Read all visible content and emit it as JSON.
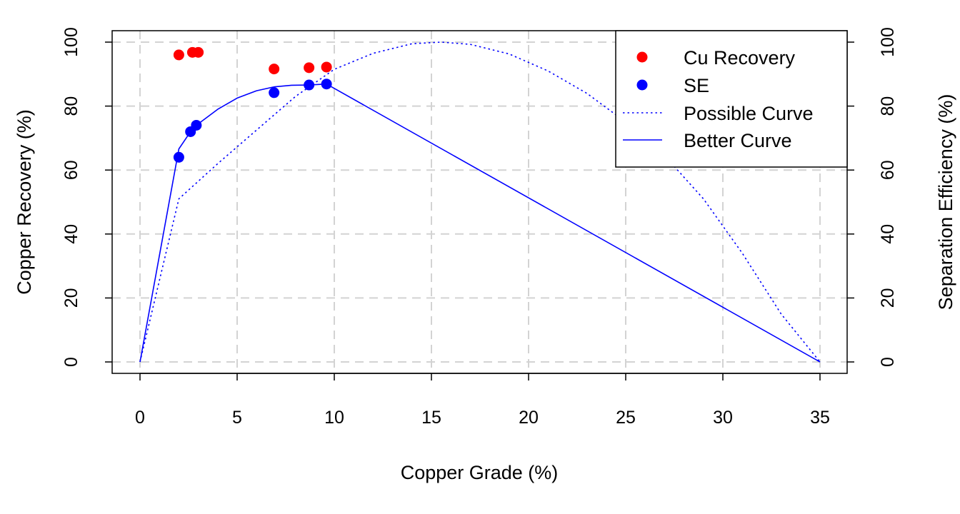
{
  "chart_data": {
    "type": "scatter",
    "xlabel": "Copper Grade (%)",
    "ylabel_left": "Copper Recovery (%)",
    "ylabel_right": "Separation Efficiency (%)",
    "xlim": [
      0,
      35
    ],
    "ylim_left": [
      0,
      100
    ],
    "ylim_right": [
      0,
      100
    ],
    "x_ticks": [
      0,
      5,
      10,
      15,
      20,
      25,
      30,
      35
    ],
    "y_ticks_left": [
      0,
      20,
      40,
      60,
      80,
      100
    ],
    "y_ticks_right": [
      0,
      20,
      40,
      60,
      80,
      100
    ],
    "grid": true,
    "legend_position": "top-right",
    "series": [
      {
        "name": "Cu Recovery",
        "kind": "points",
        "color": "#ff0000",
        "x": [
          2.0,
          2.7,
          3.0,
          6.9,
          8.7,
          9.6
        ],
        "y": [
          96.0,
          96.8,
          96.8,
          91.6,
          92.0,
          92.2
        ]
      },
      {
        "name": "SE",
        "kind": "points",
        "color": "#0000ff",
        "x": [
          2.0,
          2.6,
          2.9,
          6.9,
          8.7,
          9.6
        ],
        "y": [
          64.0,
          72.0,
          74.0,
          84.2,
          86.6,
          86.9
        ]
      },
      {
        "name": "Possible Curve",
        "kind": "line",
        "style": "dotted",
        "color": "#0000ff",
        "x": [
          0,
          2.0,
          4.0,
          6.0,
          8.0,
          10.0,
          12.0,
          14.0,
          15.5,
          17.0,
          19.0,
          21.0,
          23.0,
          25.0,
          27.0,
          29.0,
          31.0,
          33.0,
          35.0
        ],
        "y": [
          0,
          51.0,
          62.0,
          72.5,
          83.0,
          91.5,
          96.5,
          99.5,
          100.0,
          99.3,
          96.3,
          91.0,
          84.0,
          75.0,
          64.5,
          51.0,
          34.0,
          15.0,
          0
        ]
      },
      {
        "name": "Better Curve",
        "kind": "line",
        "style": "solid",
        "color": "#0000ff",
        "x": [
          0,
          2.0,
          2.6,
          2.9,
          4.0,
          5.0,
          6.0,
          6.9,
          7.8,
          8.7,
          9.6,
          35.0
        ],
        "y": [
          0,
          66.6,
          72.0,
          74.0,
          79.0,
          82.5,
          84.8,
          86.0,
          86.5,
          86.6,
          86.9,
          0
        ]
      }
    ]
  }
}
